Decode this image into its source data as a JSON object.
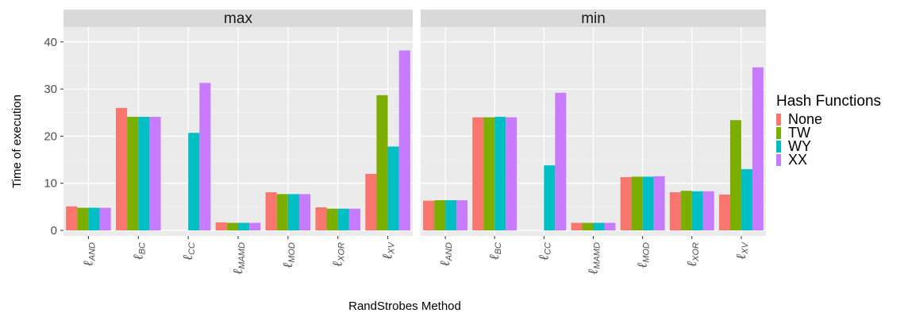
{
  "chart_data": {
    "type": "bar",
    "ylabel": "Time of execution",
    "xlabel": "RandStrobes Method",
    "ylim": [
      0,
      43
    ],
    "yticks": [
      0,
      10,
      20,
      30,
      40
    ],
    "grid": true,
    "legend": {
      "title": "Hash Functions",
      "position": "right"
    },
    "categories": [
      {
        "symbol": "ℓ",
        "sub": "AND"
      },
      {
        "symbol": "ℓ",
        "sub": "BC"
      },
      {
        "symbol": "ℓ",
        "sub": "CC"
      },
      {
        "symbol": "ℓ",
        "sub": "MAMD"
      },
      {
        "symbol": "ℓ",
        "sub": "MOD"
      },
      {
        "symbol": "ℓ",
        "sub": "XOR"
      },
      {
        "symbol": "ℓ",
        "sub": "XV"
      }
    ],
    "series_meta": [
      {
        "name": "None",
        "color": "#F8766D"
      },
      {
        "name": "TW",
        "color": "#7CAE00"
      },
      {
        "name": "WY",
        "color": "#00BFC4"
      },
      {
        "name": "XX",
        "color": "#C77CFF"
      }
    ],
    "panels": [
      {
        "title": "max",
        "series": [
          {
            "name": "None",
            "values": [
              5.1,
              26.0,
              null,
              1.7,
              8.1,
              4.9,
              12.0
            ]
          },
          {
            "name": "TW",
            "values": [
              4.8,
              24.1,
              null,
              1.6,
              7.7,
              4.6,
              28.7
            ]
          },
          {
            "name": "WY",
            "values": [
              4.8,
              24.1,
              20.7,
              1.6,
              7.7,
              4.6,
              17.8
            ]
          },
          {
            "name": "XX",
            "values": [
              4.8,
              24.1,
              31.3,
              1.6,
              7.7,
              4.6,
              38.2
            ]
          }
        ]
      },
      {
        "title": "min",
        "series": [
          {
            "name": "None",
            "values": [
              6.3,
              24.0,
              null,
              1.6,
              11.3,
              8.1,
              7.6
            ]
          },
          {
            "name": "TW",
            "values": [
              6.4,
              24.0,
              null,
              1.6,
              11.4,
              8.4,
              23.4
            ]
          },
          {
            "name": "WY",
            "values": [
              6.4,
              24.1,
              13.8,
              1.6,
              11.4,
              8.3,
              13.0
            ]
          },
          {
            "name": "XX",
            "values": [
              6.4,
              24.0,
              29.2,
              1.6,
              11.5,
              8.3,
              34.6
            ]
          }
        ]
      }
    ]
  }
}
